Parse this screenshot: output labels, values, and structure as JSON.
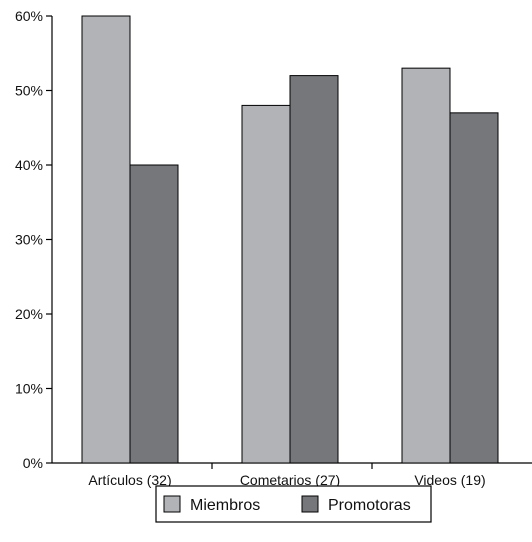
{
  "chart_data": {
    "type": "bar",
    "categories": [
      "Artículos (32)",
      "Cometarios (27)",
      "Videos (19)"
    ],
    "series": [
      {
        "name": "Miembros",
        "values": [
          60,
          48,
          53
        ],
        "color": "#b2b3b6"
      },
      {
        "name": "Promotoras",
        "values": [
          40,
          52,
          47
        ],
        "color": "#76777b"
      }
    ],
    "ylim": [
      0,
      60
    ],
    "yticks": [
      0,
      10,
      20,
      30,
      40,
      50,
      60
    ],
    "ytick_labels": [
      "0%",
      "10%",
      "20%",
      "30%",
      "40%",
      "50%",
      "60%"
    ],
    "grid": false,
    "legend_position": "bottom-center"
  }
}
